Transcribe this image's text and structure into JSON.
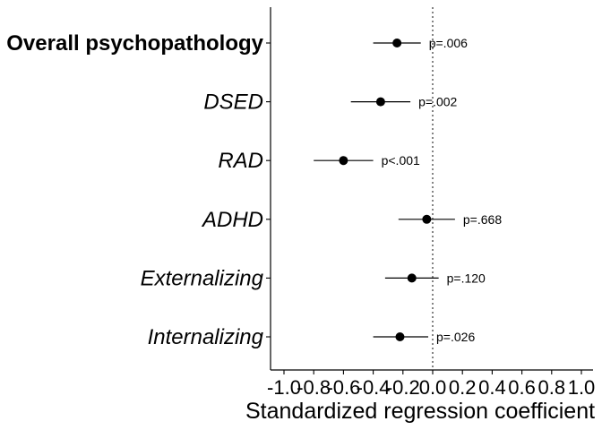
{
  "chart_data": {
    "type": "forest",
    "xlabel": "Standardized regression coefficient",
    "xlim": [
      -1.1,
      1.05
    ],
    "reference_line": 0.0,
    "x_ticks": [
      {
        "value": -1.0,
        "label": "-1.0"
      },
      {
        "value": -0.8,
        "label": "-0.8"
      },
      {
        "value": -0.6,
        "label": "-0.6"
      },
      {
        "value": -0.4,
        "label": "-0.4"
      },
      {
        "value": -0.2,
        "label": "-0.2"
      },
      {
        "value": 0.0,
        "label": "0.0"
      },
      {
        "value": 0.2,
        "label": "0.2"
      },
      {
        "value": 0.4,
        "label": "0.4"
      },
      {
        "value": 0.6,
        "label": "0.6"
      },
      {
        "value": 0.8,
        "label": "0.8"
      },
      {
        "value": 1.0,
        "label": "1.0"
      }
    ],
    "rows": [
      {
        "label": "Overall psychopathology",
        "style": "bold",
        "estimate": -0.24,
        "ci_low": -0.4,
        "ci_high": -0.08,
        "p_label": "p=.006"
      },
      {
        "label": "DSED",
        "style": "italic",
        "estimate": -0.35,
        "ci_low": -0.55,
        "ci_high": -0.15,
        "p_label": "p=.002"
      },
      {
        "label": "RAD",
        "style": "italic",
        "estimate": -0.6,
        "ci_low": -0.8,
        "ci_high": -0.4,
        "p_label": "p<.001"
      },
      {
        "label": "ADHD",
        "style": "italic",
        "estimate": -0.04,
        "ci_low": -0.23,
        "ci_high": 0.15,
        "p_label": "p=.668"
      },
      {
        "label": "Externalizing",
        "style": "italic",
        "estimate": -0.14,
        "ci_low": -0.32,
        "ci_high": 0.04,
        "p_label": "p=.120"
      },
      {
        "label": "Internalizing",
        "style": "italic",
        "estimate": -0.22,
        "ci_low": -0.4,
        "ci_high": -0.03,
        "p_label": "p=.026"
      }
    ]
  }
}
